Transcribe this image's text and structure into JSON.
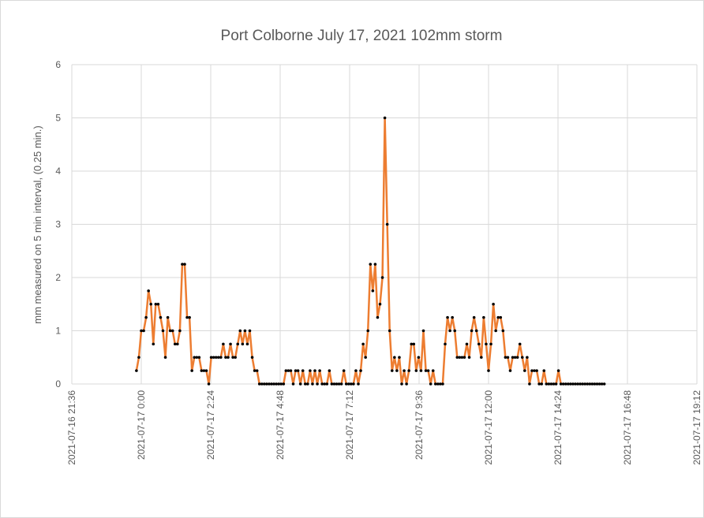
{
  "chart_data": {
    "type": "line",
    "title": "Port Colborne July 17, 2021 102mm storm",
    "y_label": "mm measured on 5 min interval, (0.25 min.)",
    "color": "#ED7D31",
    "marker_color": "#000000",
    "grid": true,
    "xlim": [
      "2021-07-16 21:36",
      "2021-07-17 19:12"
    ],
    "xticks": [
      "2021-07-16 21:36",
      "2021-07-17 0:00",
      "2021-07-17 2:24",
      "2021-07-17 4:48",
      "2021-07-17 7:12",
      "2021-07-17 9:36",
      "2021-07-17 12:00",
      "2021-07-17 14:24",
      "2021-07-17 16:48",
      "2021-07-17 19:12"
    ],
    "ylim": [
      0,
      6
    ],
    "yticks": [
      0,
      1,
      2,
      3,
      4,
      5,
      6
    ],
    "x": [
      "2021-07-16 23:50",
      "2021-07-16 23:55",
      "2021-07-17 0:00",
      "2021-07-17 0:05",
      "2021-07-17 0:10",
      "2021-07-17 0:15",
      "2021-07-17 0:20",
      "2021-07-17 0:25",
      "2021-07-17 0:30",
      "2021-07-17 0:35",
      "2021-07-17 0:40",
      "2021-07-17 0:45",
      "2021-07-17 0:50",
      "2021-07-17 0:55",
      "2021-07-17 1:00",
      "2021-07-17 1:05",
      "2021-07-17 1:10",
      "2021-07-17 1:15",
      "2021-07-17 1:20",
      "2021-07-17 1:25",
      "2021-07-17 1:30",
      "2021-07-17 1:35",
      "2021-07-17 1:40",
      "2021-07-17 1:45",
      "2021-07-17 1:50",
      "2021-07-17 1:55",
      "2021-07-17 2:00",
      "2021-07-17 2:05",
      "2021-07-17 2:10",
      "2021-07-17 2:15",
      "2021-07-17 2:20",
      "2021-07-17 2:25",
      "2021-07-17 2:30",
      "2021-07-17 2:35",
      "2021-07-17 2:40",
      "2021-07-17 2:45",
      "2021-07-17 2:50",
      "2021-07-17 2:55",
      "2021-07-17 3:00",
      "2021-07-17 3:05",
      "2021-07-17 3:10",
      "2021-07-17 3:15",
      "2021-07-17 3:20",
      "2021-07-17 3:25",
      "2021-07-17 3:30",
      "2021-07-17 3:35",
      "2021-07-17 3:40",
      "2021-07-17 3:45",
      "2021-07-17 3:50",
      "2021-07-17 3:55",
      "2021-07-17 4:00",
      "2021-07-17 4:05",
      "2021-07-17 4:10",
      "2021-07-17 4:15",
      "2021-07-17 4:20",
      "2021-07-17 4:25",
      "2021-07-17 4:30",
      "2021-07-17 4:35",
      "2021-07-17 4:40",
      "2021-07-17 4:45",
      "2021-07-17 4:50",
      "2021-07-17 4:55",
      "2021-07-17 5:00",
      "2021-07-17 5:05",
      "2021-07-17 5:10",
      "2021-07-17 5:15",
      "2021-07-17 5:20",
      "2021-07-17 5:25",
      "2021-07-17 5:30",
      "2021-07-17 5:35",
      "2021-07-17 5:40",
      "2021-07-17 5:45",
      "2021-07-17 5:50",
      "2021-07-17 5:55",
      "2021-07-17 6:00",
      "2021-07-17 6:05",
      "2021-07-17 6:10",
      "2021-07-17 6:15",
      "2021-07-17 6:20",
      "2021-07-17 6:25",
      "2021-07-17 6:30",
      "2021-07-17 6:35",
      "2021-07-17 6:40",
      "2021-07-17 6:45",
      "2021-07-17 6:50",
      "2021-07-17 6:55",
      "2021-07-17 7:00",
      "2021-07-17 7:05",
      "2021-07-17 7:10",
      "2021-07-17 7:15",
      "2021-07-17 7:20",
      "2021-07-17 7:25",
      "2021-07-17 7:30",
      "2021-07-17 7:35",
      "2021-07-17 7:40",
      "2021-07-17 7:45",
      "2021-07-17 7:50",
      "2021-07-17 7:55",
      "2021-07-17 8:00",
      "2021-07-17 8:05",
      "2021-07-17 8:10",
      "2021-07-17 8:15",
      "2021-07-17 8:20",
      "2021-07-17 8:25",
      "2021-07-17 8:30",
      "2021-07-17 8:35",
      "2021-07-17 8:40",
      "2021-07-17 8:45",
      "2021-07-17 8:50",
      "2021-07-17 8:55",
      "2021-07-17 9:00",
      "2021-07-17 9:05",
      "2021-07-17 9:10",
      "2021-07-17 9:15",
      "2021-07-17 9:20",
      "2021-07-17 9:25",
      "2021-07-17 9:30",
      "2021-07-17 9:35",
      "2021-07-17 9:40",
      "2021-07-17 9:45",
      "2021-07-17 9:50",
      "2021-07-17 9:55",
      "2021-07-17 10:00",
      "2021-07-17 10:05",
      "2021-07-17 10:10",
      "2021-07-17 10:15",
      "2021-07-17 10:20",
      "2021-07-17 10:25",
      "2021-07-17 10:30",
      "2021-07-17 10:35",
      "2021-07-17 10:40",
      "2021-07-17 10:45",
      "2021-07-17 10:50",
      "2021-07-17 10:55",
      "2021-07-17 11:00",
      "2021-07-17 11:05",
      "2021-07-17 11:10",
      "2021-07-17 11:15",
      "2021-07-17 11:20",
      "2021-07-17 11:25",
      "2021-07-17 11:30",
      "2021-07-17 11:35",
      "2021-07-17 11:40",
      "2021-07-17 11:45",
      "2021-07-17 11:50",
      "2021-07-17 11:55",
      "2021-07-17 12:00",
      "2021-07-17 12:05",
      "2021-07-17 12:10",
      "2021-07-17 12:15",
      "2021-07-17 12:20",
      "2021-07-17 12:25",
      "2021-07-17 12:30",
      "2021-07-17 12:35",
      "2021-07-17 12:40",
      "2021-07-17 12:45",
      "2021-07-17 12:50",
      "2021-07-17 12:55",
      "2021-07-17 13:00",
      "2021-07-17 13:05",
      "2021-07-17 13:10",
      "2021-07-17 13:15",
      "2021-07-17 13:20",
      "2021-07-17 13:25",
      "2021-07-17 13:30",
      "2021-07-17 13:35",
      "2021-07-17 13:40",
      "2021-07-17 13:45",
      "2021-07-17 13:50",
      "2021-07-17 13:55",
      "2021-07-17 14:00",
      "2021-07-17 14:05",
      "2021-07-17 14:10",
      "2021-07-17 14:15",
      "2021-07-17 14:20",
      "2021-07-17 14:25",
      "2021-07-17 14:30",
      "2021-07-17 14:35",
      "2021-07-17 14:40",
      "2021-07-17 14:45",
      "2021-07-17 14:50",
      "2021-07-17 14:55",
      "2021-07-17 15:00",
      "2021-07-17 15:05",
      "2021-07-17 15:10",
      "2021-07-17 15:15",
      "2021-07-17 15:20",
      "2021-07-17 15:25",
      "2021-07-17 15:30",
      "2021-07-17 15:35",
      "2021-07-17 15:40",
      "2021-07-17 15:45",
      "2021-07-17 15:50",
      "2021-07-17 15:55",
      "2021-07-17 16:00"
    ],
    "values": [
      0.25,
      0.5,
      1,
      1,
      1.25,
      1.75,
      1.5,
      0.75,
      1.5,
      1.5,
      1.25,
      1,
      0.5,
      1.25,
      1,
      1,
      0.75,
      0.75,
      1,
      2.25,
      2.25,
      1.25,
      1.25,
      0.25,
      0.5,
      0.5,
      0.5,
      0.25,
      0.25,
      0.25,
      0,
      0.5,
      0.5,
      0.5,
      0.5,
      0.5,
      0.75,
      0.5,
      0.5,
      0.75,
      0.5,
      0.5,
      0.75,
      1,
      0.75,
      1,
      0.75,
      1,
      0.5,
      0.25,
      0.25,
      0,
      0,
      0,
      0,
      0,
      0,
      0,
      0,
      0,
      0,
      0,
      0.25,
      0.25,
      0.25,
      0,
      0.25,
      0.25,
      0,
      0.25,
      0,
      0,
      0.25,
      0,
      0.25,
      0,
      0.25,
      0,
      0,
      0,
      0.25,
      0,
      0,
      0,
      0,
      0,
      0.25,
      0,
      0,
      0,
      0,
      0.25,
      0,
      0.25,
      0.75,
      0.5,
      1,
      2.25,
      1.75,
      2.25,
      1.25,
      1.5,
      2,
      5,
      3,
      1,
      0.25,
      0.5,
      0.25,
      0.5,
      0,
      0.25,
      0,
      0.25,
      0.75,
      0.75,
      0.25,
      0.5,
      0.25,
      1,
      0.25,
      0.25,
      0,
      0.25,
      0,
      0,
      0,
      0,
      0.75,
      1.25,
      1,
      1.25,
      1,
      0.5,
      0.5,
      0.5,
      0.5,
      0.75,
      0.5,
      1,
      1.25,
      1,
      0.75,
      0.5,
      1.25,
      0.75,
      0.25,
      0.75,
      1.5,
      1,
      1.25,
      1.25,
      1,
      0.5,
      0.5,
      0.25,
      0.5,
      0.5,
      0.5,
      0.75,
      0.5,
      0.25,
      0.5,
      0,
      0.25,
      0.25,
      0.25,
      0,
      0,
      0.25,
      0,
      0,
      0,
      0,
      0,
      0.25,
      0,
      0,
      0,
      0,
      0,
      0,
      0,
      0,
      0,
      0,
      0,
      0,
      0,
      0,
      0,
      0,
      0,
      0,
      0
    ]
  }
}
